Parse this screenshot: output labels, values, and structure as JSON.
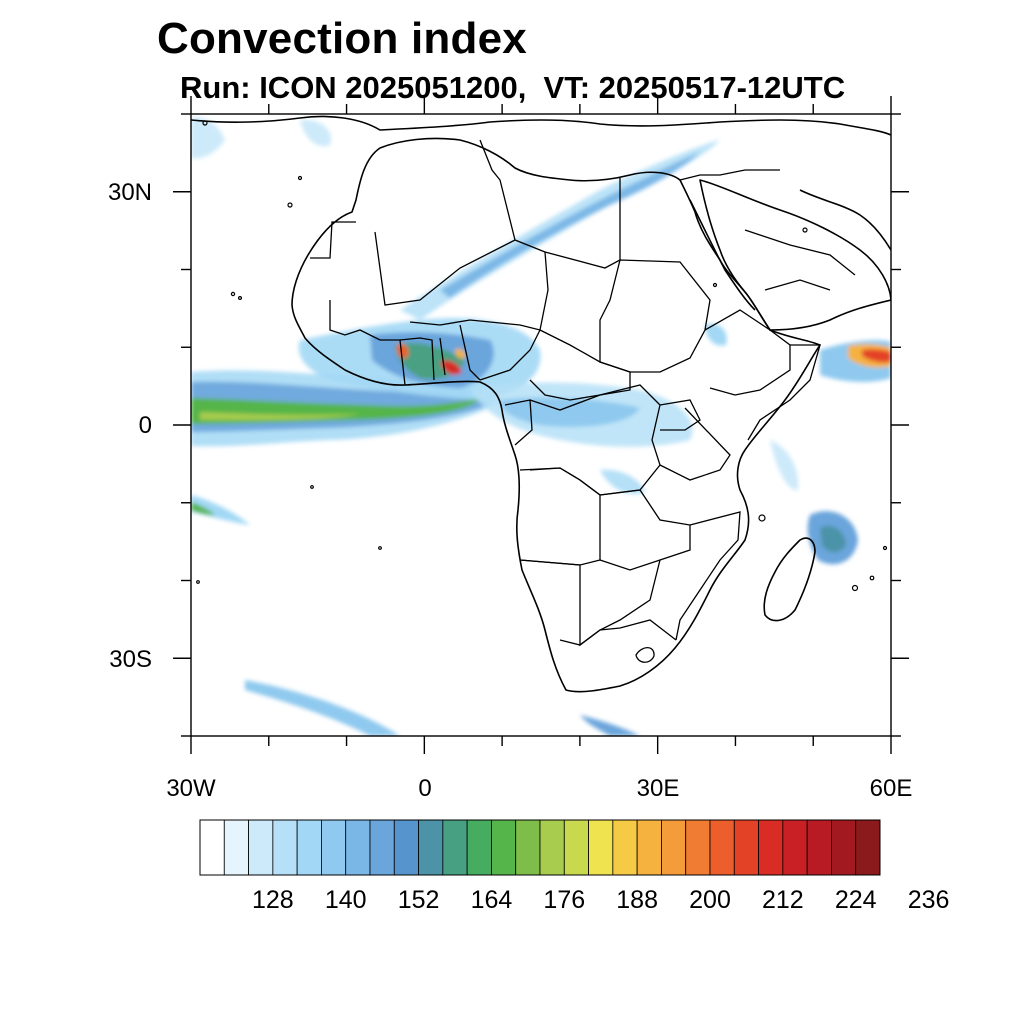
{
  "title": "Convection index",
  "subtitle": "Run: ICON 2025051200,  VT: 20250517-12UTC",
  "axes": {
    "lat_labels": [
      "30N",
      "0",
      "30S"
    ],
    "lon_labels": [
      "30W",
      "0",
      "30E",
      "60E"
    ]
  },
  "colorbar": {
    "labels": [
      "128",
      "140",
      "152",
      "164",
      "176",
      "188",
      "200",
      "212",
      "224",
      "236"
    ],
    "colors": [
      "#ffffff",
      "#e6f5fd",
      "#cdeafa",
      "#b5e0f7",
      "#a2d8f5",
      "#8fc9ef",
      "#7bb7e6",
      "#6aa5dc",
      "#5594cd",
      "#4c93a8",
      "#48a082",
      "#46ad60",
      "#55b54a",
      "#7ebd49",
      "#a8cc4d",
      "#c9d94e",
      "#efe34f",
      "#f5cb45",
      "#f5b23f",
      "#f49b3a",
      "#f07b32",
      "#ec5e2c",
      "#e44227",
      "#d82c25",
      "#c92025",
      "#b81b24",
      "#a21a20",
      "#8b1a1c"
    ]
  },
  "map": {
    "projection": "cylindrical-equidistant",
    "extent": "30W-60E, 40S-40N",
    "field": "Convection index"
  }
}
